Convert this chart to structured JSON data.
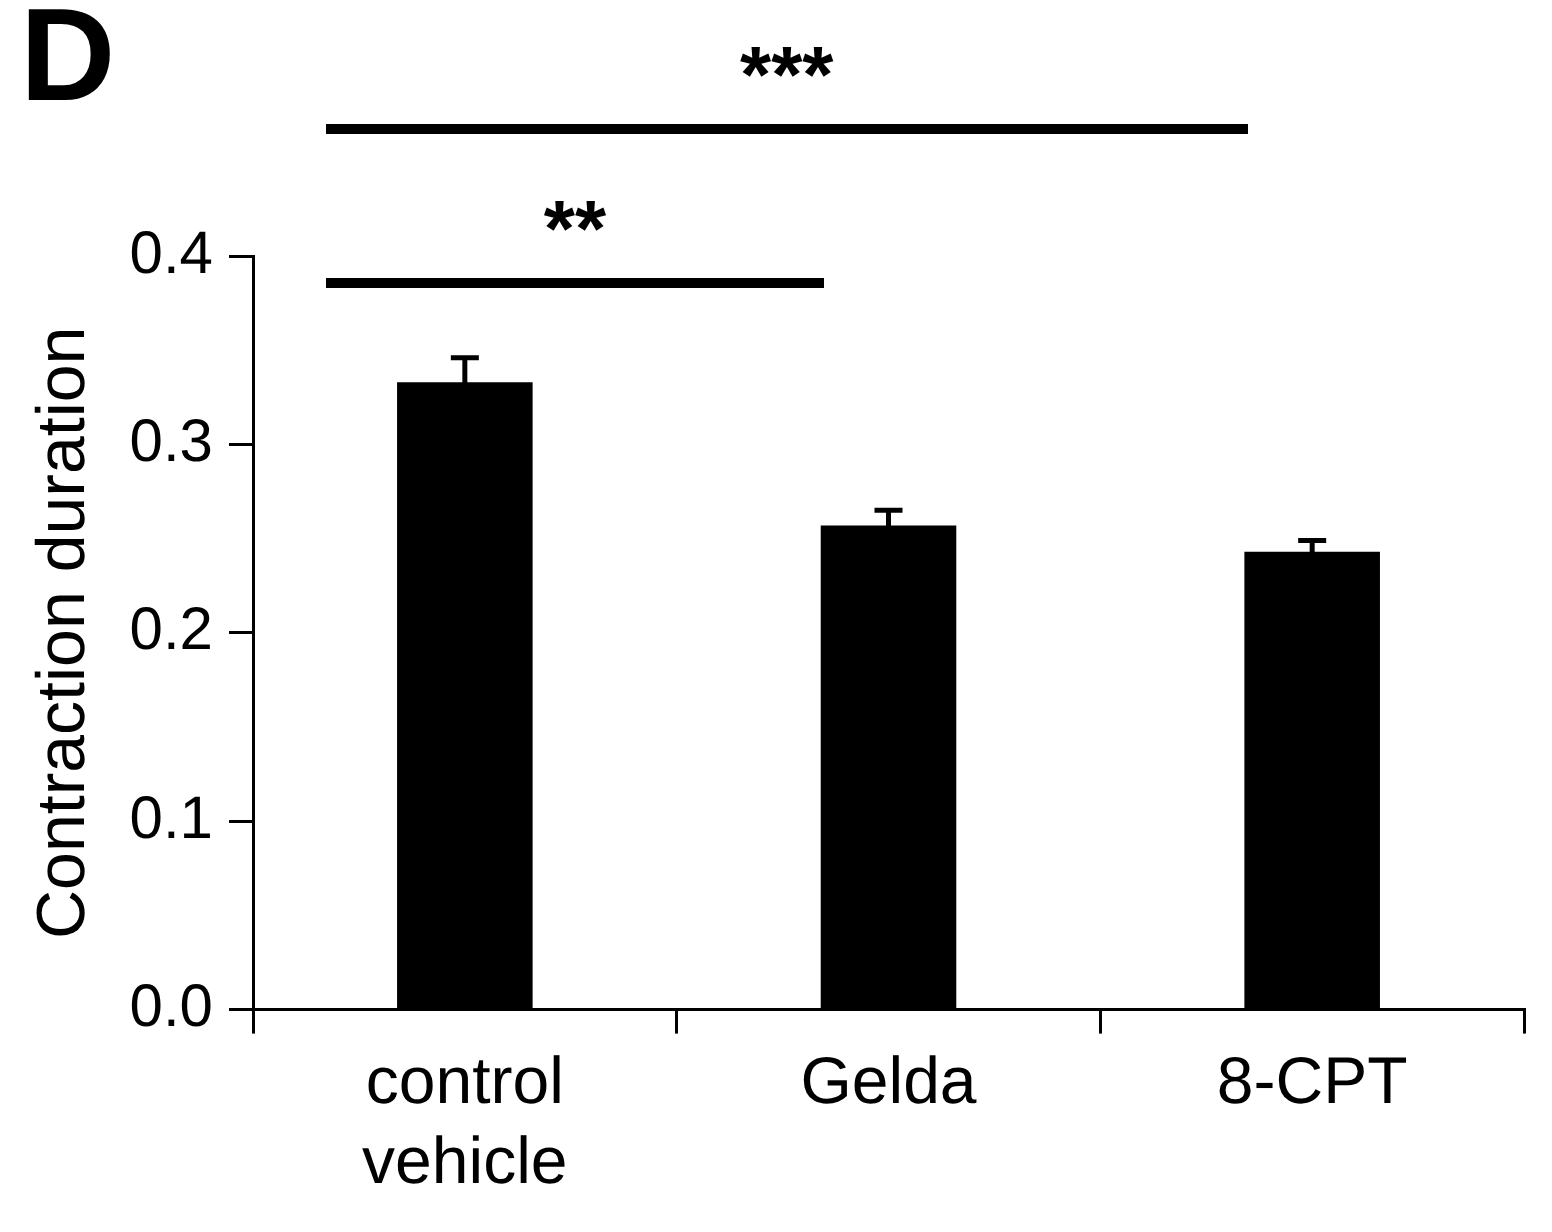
{
  "chart_data": {
    "type": "bar",
    "ylabel": "Contraction duration",
    "categories": [
      "control vehicle",
      "Gelda",
      "8-CPT"
    ],
    "values": [
      0.333,
      0.257,
      0.243
    ],
    "errors": [
      0.013,
      0.008,
      0.006
    ],
    "color": "#000000",
    "ylim": [
      0,
      0.4
    ],
    "yticks": [
      {
        "value": 0,
        "label": "0.0"
      },
      {
        "value": 0.1,
        "label": "0.1"
      },
      {
        "value": 0.2,
        "label": "0.2"
      },
      {
        "value": 0.3,
        "label": "0.3"
      },
      {
        "value": 0.4,
        "label": "0.4"
      }
    ],
    "grid": false,
    "legend": false,
    "annotations": [
      "D",
      "**",
      "***"
    ]
  }
}
